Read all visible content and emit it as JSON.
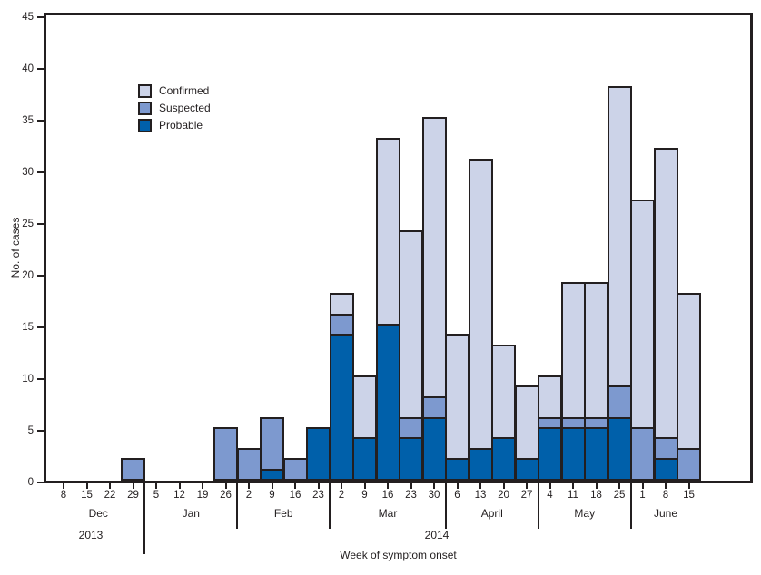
{
  "chart_data": {
    "type": "bar",
    "stacked": true,
    "title": "",
    "xlabel": "Week of symptom onset",
    "ylabel": "No. of cases",
    "ylim": [
      0,
      45
    ],
    "ytick_step": 5,
    "grid": false,
    "legend_position": "upper-left-inside",
    "axis_color": "#231f20",
    "legend": [
      {
        "label": "Confirmed",
        "color": "#ccd3e8"
      },
      {
        "label": "Suspected",
        "color": "#7d99cf"
      },
      {
        "label": "Probable",
        "color": "#0060aa"
      }
    ],
    "x_tick_labels": [
      "8",
      "15",
      "22",
      "29",
      "5",
      "12",
      "19",
      "26",
      "2",
      "9",
      "16",
      "23",
      "2",
      "9",
      "16",
      "23",
      "30",
      "6",
      "13",
      "20",
      "27",
      "4",
      "11",
      "18",
      "25",
      "1",
      "8",
      "15"
    ],
    "months": [
      {
        "label": "Dec",
        "weeks": 4
      },
      {
        "label": "Jan",
        "weeks": 4
      },
      {
        "label": "Feb",
        "weeks": 4
      },
      {
        "label": "Mar",
        "weeks": 5
      },
      {
        "label": "April",
        "weeks": 4
      },
      {
        "label": "May",
        "weeks": 4
      },
      {
        "label": "June",
        "weeks": 3
      }
    ],
    "years": [
      {
        "label": "2013"
      },
      {
        "label": "2014"
      }
    ],
    "series": [
      {
        "name": "Probable",
        "color": "#0060aa",
        "values": [
          0,
          0,
          0,
          0,
          0,
          0,
          0,
          0,
          0,
          1,
          0,
          5,
          14,
          4,
          15,
          4,
          6,
          2,
          3,
          4,
          2,
          5,
          5,
          5,
          6,
          0,
          2,
          0
        ]
      },
      {
        "name": "Suspected",
        "color": "#7d99cf",
        "values": [
          0,
          0,
          0,
          2,
          0,
          0,
          0,
          5,
          3,
          5,
          2,
          0,
          2,
          0,
          0,
          2,
          2,
          0,
          0,
          0,
          0,
          1,
          1,
          1,
          3,
          5,
          2,
          3
        ]
      },
      {
        "name": "Confirmed",
        "color": "#ccd3e8",
        "values": [
          0,
          0,
          0,
          0,
          0,
          0,
          0,
          0,
          0,
          0,
          0,
          0,
          2,
          6,
          18,
          18,
          27,
          12,
          28,
          9,
          7,
          4,
          13,
          13,
          29,
          22,
          28,
          15
        ]
      }
    ]
  }
}
